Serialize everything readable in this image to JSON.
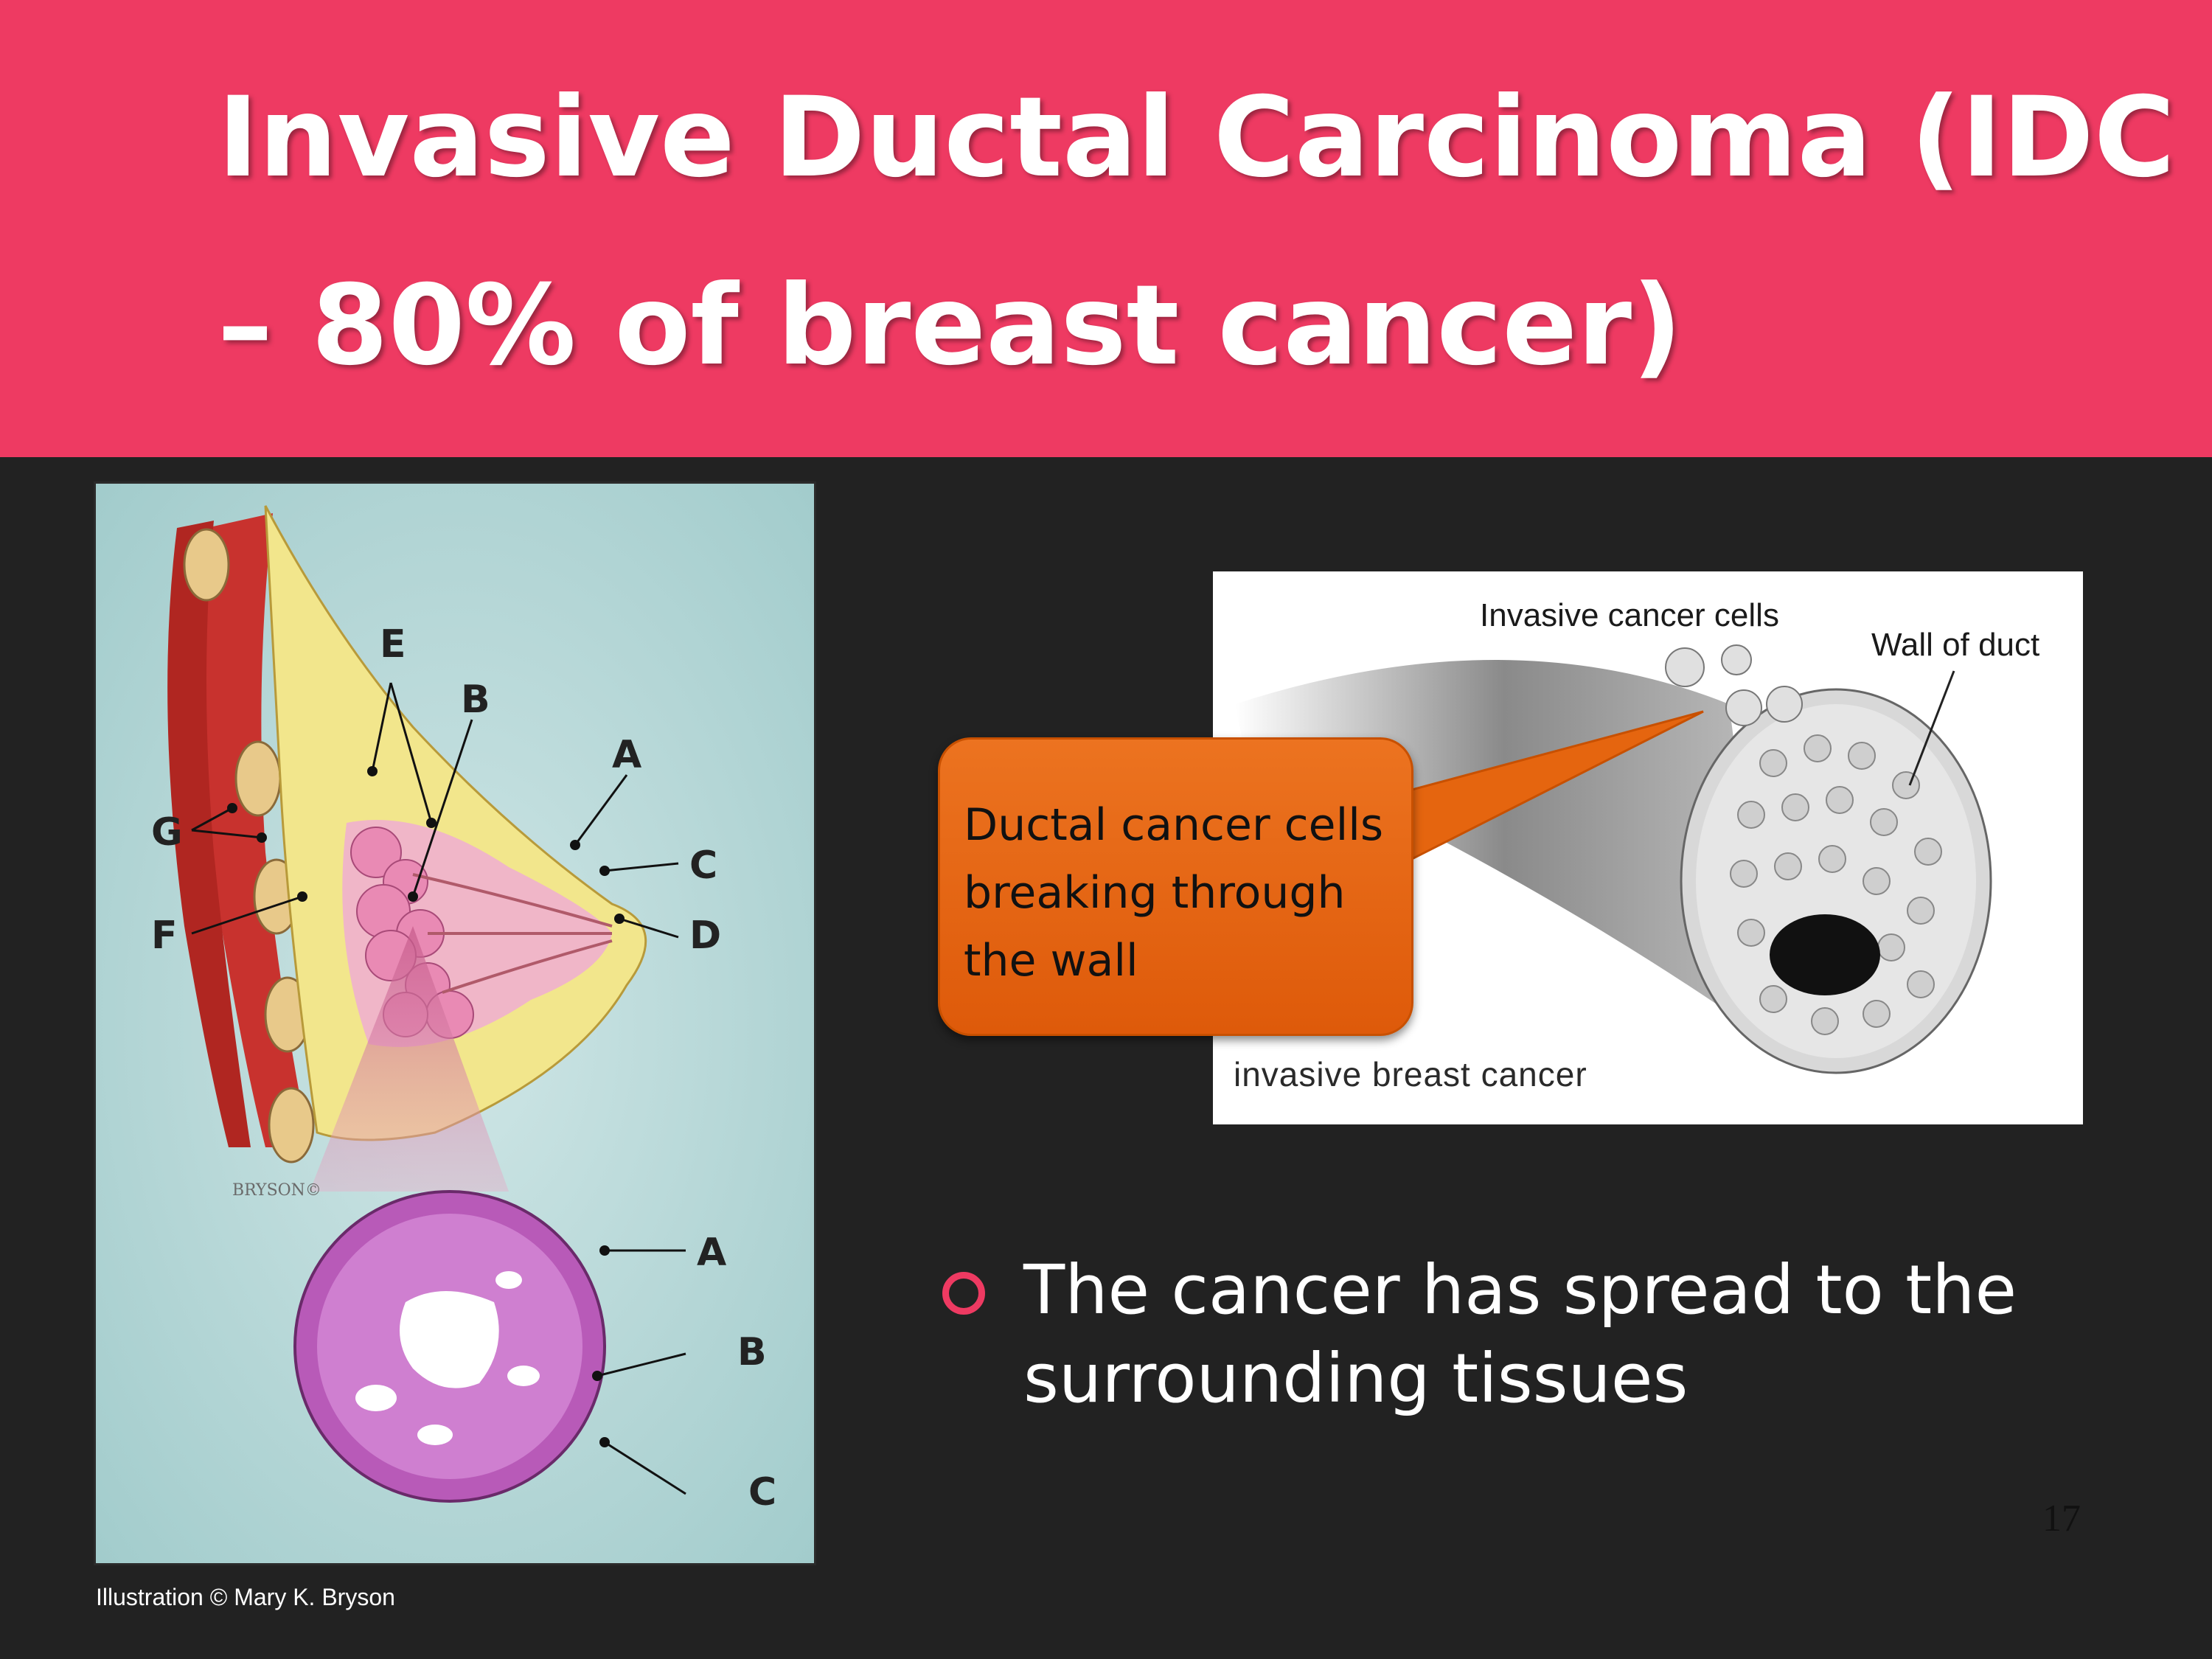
{
  "header": {
    "title_line1": "Invasive Ductal Carcinoma (IDC",
    "title_line2": "– 80% of breast cancer)",
    "background_color": "#ee3a62"
  },
  "left_illustration": {
    "labels": {
      "E": "E",
      "B": "B",
      "A": "A",
      "G": "G",
      "C": "C",
      "F": "F",
      "D": "D",
      "A2": "A",
      "B2": "B",
      "C2": "C"
    },
    "signature": "BRYSON©",
    "credit": "Illustration © Mary K. Bryson"
  },
  "right_illustration": {
    "label_invasive_cells": "Invasive cancer cells",
    "label_wall": "Wall of duct",
    "label_bottom": "invasive breast cancer"
  },
  "callout": {
    "text": "Ductal cancer cells breaking through the wall",
    "color": "#e5650f"
  },
  "bullet": {
    "text": "The cancer has spread to the surrounding tissues",
    "marker_color": "#ee3a62"
  },
  "page_number": "17"
}
